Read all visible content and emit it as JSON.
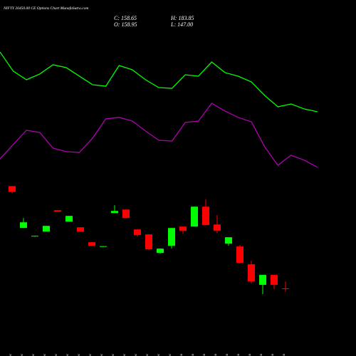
{
  "chart_data": {
    "type": "candlestick",
    "title": "NIFTY 26450.00 CE Options Chart MunafaSutra.com",
    "ohlc_labels": [
      "C: 158.65",
      "H: 183.85",
      "O: 158.95",
      "L: 147.00"
    ],
    "categories": [
      "08 Dec",
      "09 Dec",
      "10 Dec",
      "11 Dec",
      "12 Dec",
      "15 Dec",
      "16 Dec",
      "17 Dec",
      "19 Dec",
      "23 Dec",
      "24 Dec",
      "26 Dec",
      "29 Dec",
      "30 Dec",
      "31 Dec",
      "01 Jan",
      "02 Jan",
      "05 Jan",
      "06 Jan",
      "07 Jan",
      "08 Jan",
      "09 Jan",
      "12 Jan",
      "13 Jan",
      "14 Jan"
    ],
    "open": [
      533,
      379.8,
      348.6,
      366.8,
      444.8,
      403.2,
      382.4,
      327.8,
      310.9,
      434.4,
      447.4,
      374.6,
      356.4,
      288.8,
      314.8,
      385,
      385,
      457.8,
      392.8,
      322.6,
      312.2,
      247.2,
      171.8,
      208.2,
      158.95
    ],
    "high": [
      533,
      416,
      351.2,
      387.6,
      444.8,
      424,
      382.4,
      327.8,
      313.5,
      463,
      447.4,
      374.6,
      356.4,
      304.4,
      379.8,
      385,
      457.8,
      483.8,
      426.6,
      346,
      317.4,
      260.2,
      208.2,
      208.2,
      183.85
    ],
    "low": [
      507,
      379.8,
      348.6,
      366.8,
      439.6,
      403.2,
      366.8,
      314.8,
      310.9,
      434.4,
      416.2,
      348.6,
      299.2,
      286.2,
      304.4,
      359,
      385,
      390.2,
      361.6,
      314.8,
      249.8,
      177,
      138,
      156.2,
      147
    ],
    "close": [
      512,
      400.6,
      351.2,
      387.6,
      439.6,
      424,
      366.8,
      314.8,
      313.5,
      442.2,
      416.2,
      353.8,
      301.8,
      304.4,
      379.8,
      369.4,
      457.8,
      390.2,
      369.4,
      346,
      252.4,
      184.8,
      208.2,
      171.8,
      158.65
    ],
    "up_color": "#00ff00",
    "down_color": "#ff0000",
    "ylim": [
      120,
      560
    ],
    "overlay_ylim": [
      0,
      100
    ],
    "overlays": [
      {
        "color": "#00ff00",
        "values": [
          92.8,
          77.8,
          71.1,
          75.6,
          82.8,
          80.6,
          73.9,
          67.2,
          66.1,
          82.2,
          78.9,
          71.1,
          65,
          64.4,
          75,
          73.9,
          85,
          76.7,
          73.9,
          69.4,
          58.9,
          50,
          52.2,
          48.3,
          46.1
        ]
      },
      {
        "color": "#b000b0",
        "values": [
          9.4,
          20.6,
          31.7,
          30,
          17.8,
          15,
          14.4,
          25.6,
          40.6,
          41.7,
          38.9,
          31.1,
          23.9,
          23.3,
          37.8,
          38.9,
          52.8,
          46.7,
          41.7,
          38.3,
          18.9,
          4.4,
          12.2,
          8.3,
          2.8
        ]
      }
    ]
  }
}
